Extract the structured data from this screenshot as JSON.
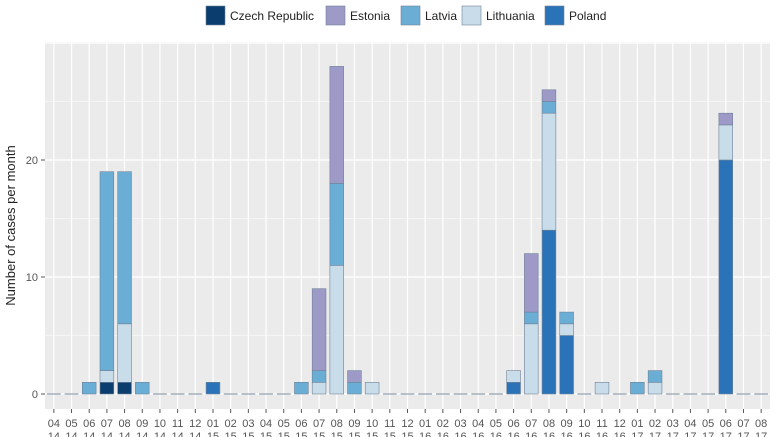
{
  "chart_data": {
    "type": "bar",
    "stacked": true,
    "title": "",
    "xlabel": "",
    "ylabel": "Number of cases per month",
    "ylim": [
      0,
      30
    ],
    "yticks": [
      0,
      10,
      20
    ],
    "grid": true,
    "legend_position": "top",
    "categories": [
      [
        "04",
        "14"
      ],
      [
        "05",
        "14"
      ],
      [
        "06",
        "14"
      ],
      [
        "07",
        "14"
      ],
      [
        "08",
        "14"
      ],
      [
        "09",
        "14"
      ],
      [
        "10",
        "14"
      ],
      [
        "11",
        "14"
      ],
      [
        "12",
        "14"
      ],
      [
        "01",
        "15"
      ],
      [
        "02",
        "15"
      ],
      [
        "03",
        "15"
      ],
      [
        "04",
        "15"
      ],
      [
        "05",
        "15"
      ],
      [
        "06",
        "15"
      ],
      [
        "07",
        "15"
      ],
      [
        "08",
        "15"
      ],
      [
        "09",
        "15"
      ],
      [
        "10",
        "15"
      ],
      [
        "11",
        "15"
      ],
      [
        "12",
        "15"
      ],
      [
        "01",
        "16"
      ],
      [
        "02",
        "16"
      ],
      [
        "03",
        "16"
      ],
      [
        "04",
        "16"
      ],
      [
        "05",
        "16"
      ],
      [
        "06",
        "16"
      ],
      [
        "07",
        "16"
      ],
      [
        "08",
        "16"
      ],
      [
        "09",
        "16"
      ],
      [
        "10",
        "16"
      ],
      [
        "11",
        "16"
      ],
      [
        "12",
        "16"
      ],
      [
        "01",
        "17"
      ],
      [
        "02",
        "17"
      ],
      [
        "03",
        "17"
      ],
      [
        "04",
        "17"
      ],
      [
        "05",
        "17"
      ],
      [
        "06",
        "17"
      ],
      [
        "07",
        "17"
      ],
      [
        "08",
        "17"
      ]
    ],
    "series": [
      {
        "name": "Czech Republic",
        "color": "#0b3d6e",
        "values": [
          0,
          0,
          0,
          1,
          1,
          0,
          0,
          0,
          0,
          0,
          0,
          0,
          0,
          0,
          0,
          0,
          0,
          0,
          0,
          0,
          0,
          0,
          0,
          0,
          0,
          0,
          0,
          0,
          0,
          0,
          0,
          0,
          0,
          0,
          0,
          0,
          0,
          0,
          0,
          0,
          0
        ]
      },
      {
        "name": "Poland",
        "color": "#2a73b8",
        "values": [
          0,
          0,
          0,
          0,
          0,
          0,
          0,
          0,
          0,
          1,
          0,
          0,
          0,
          0,
          0,
          0,
          0,
          0,
          0,
          0,
          0,
          0,
          0,
          0,
          0,
          0,
          1,
          0,
          14,
          5,
          0,
          0,
          0,
          0,
          0,
          0,
          0,
          0,
          20,
          0,
          0
        ]
      },
      {
        "name": "Lithuania",
        "color": "#c9dcea",
        "values": [
          0,
          0,
          0,
          1,
          5,
          0,
          0,
          0,
          0,
          0,
          0,
          0,
          0,
          0,
          0,
          1,
          11,
          0,
          1,
          0,
          0,
          0,
          0,
          0,
          0,
          0,
          1,
          6,
          10,
          1,
          0,
          1,
          0,
          0,
          1,
          0,
          0,
          0,
          3,
          0,
          0
        ]
      },
      {
        "name": "Latvia",
        "color": "#6aaed6",
        "values": [
          0,
          0,
          1,
          17,
          13,
          1,
          0,
          0,
          0,
          0,
          0,
          0,
          0,
          0,
          1,
          1,
          7,
          1,
          0,
          0,
          0,
          0,
          0,
          0,
          0,
          0,
          0,
          1,
          1,
          1,
          0,
          0,
          0,
          1,
          1,
          0,
          0,
          0,
          0,
          0,
          0
        ]
      },
      {
        "name": "Estonia",
        "color": "#9e9ac8",
        "values": [
          0,
          0,
          0,
          0,
          0,
          0,
          0,
          0,
          0,
          0,
          0,
          0,
          0,
          0,
          0,
          7,
          10,
          1,
          0,
          0,
          0,
          0,
          0,
          0,
          0,
          0,
          0,
          5,
          1,
          0,
          0,
          0,
          0,
          0,
          0,
          0,
          0,
          0,
          1,
          0,
          0
        ]
      }
    ],
    "legend_order": [
      "Czech Republic",
      "Estonia",
      "Latvia",
      "Lithuania",
      "Poland"
    ]
  },
  "colors": {
    "panel_background": "#ebebeb",
    "grid_major": "#ffffff",
    "bar_outline": "#6f8296"
  }
}
